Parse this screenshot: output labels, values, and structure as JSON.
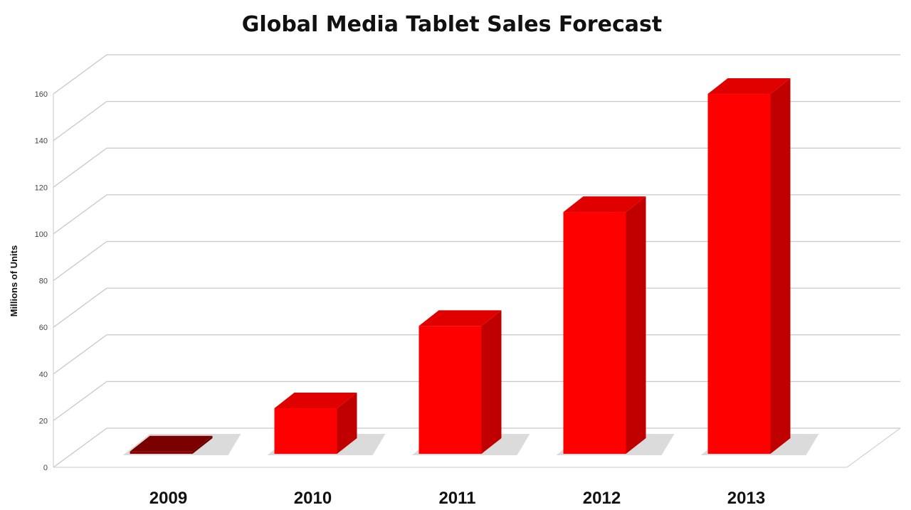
{
  "chart_data": {
    "type": "bar",
    "title": "Global Media Tablet Sales Forecast",
    "xlabel": "",
    "ylabel": "Millions of Units",
    "categories": [
      "2009",
      "2010",
      "2011",
      "2012",
      "2013"
    ],
    "values": [
      1,
      19.5,
      54.8,
      103.6,
      154.2
    ],
    "ylim": [
      0,
      160
    ],
    "yticks": [
      0,
      20,
      40,
      60,
      80,
      100,
      120,
      140,
      160
    ],
    "grid": true,
    "style": "3d",
    "colors": {
      "bar": "#ff0000",
      "bar_side": "#c00000",
      "bar_top": "#e00000",
      "bar_2009": "#8b0000",
      "grid": "#c8c8c8"
    }
  }
}
